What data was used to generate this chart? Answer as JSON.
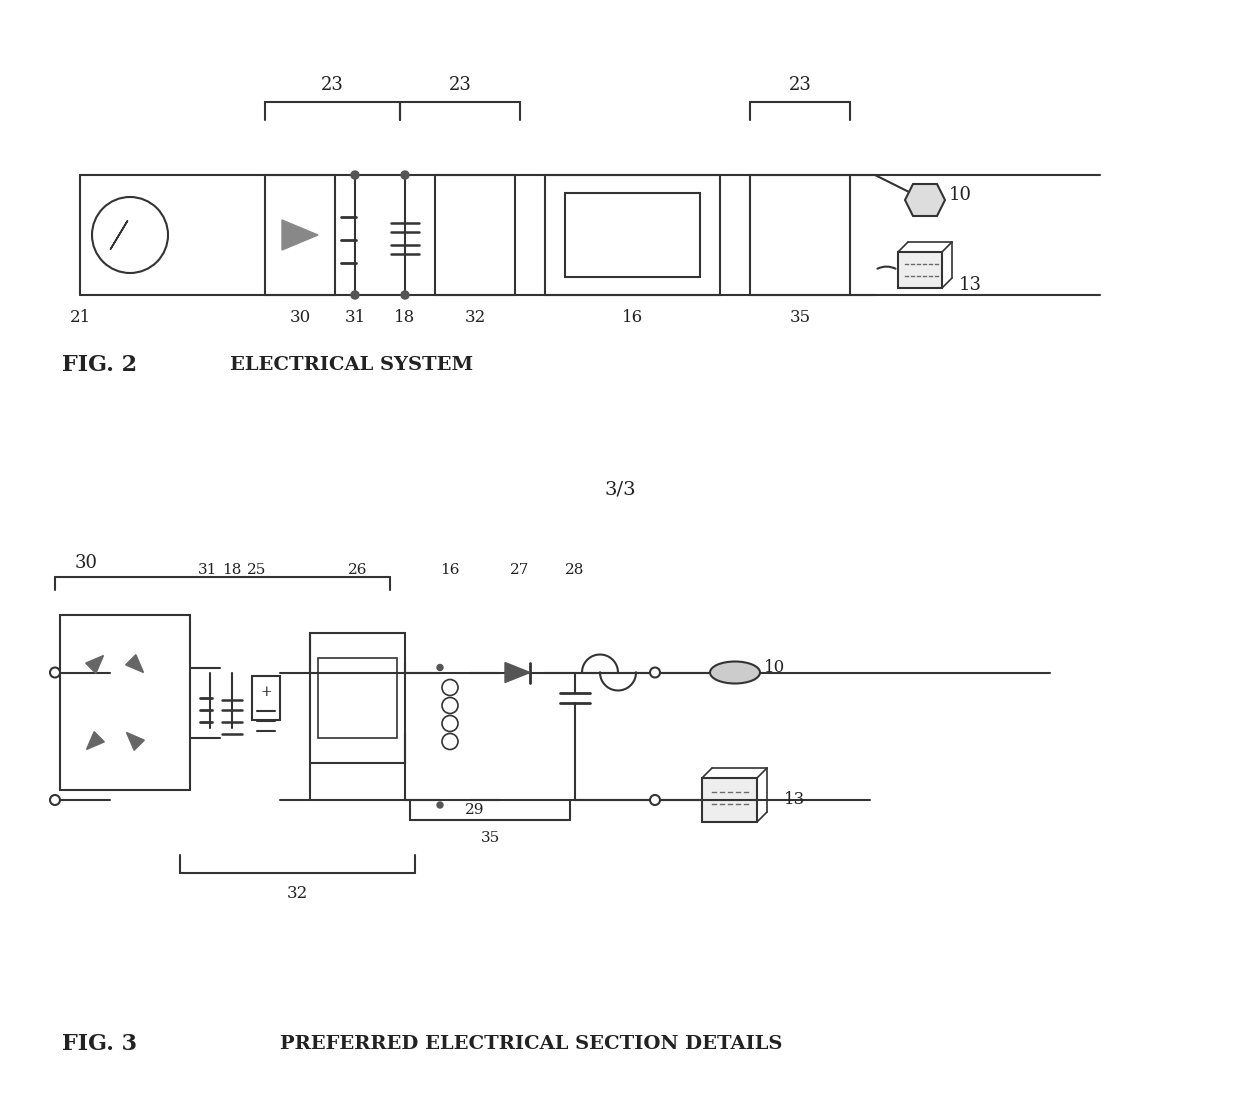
{
  "bg_color": "#ffffff",
  "line_color": "#333333",
  "fig2_title": "FIG. 2",
  "fig2_subtitle": "ELECTRICAL SYSTEM",
  "fig3_title": "FIG. 3",
  "fig3_subtitle": "PREFERRED ELECTRICAL SECTION DETAILS",
  "page_label": "3/3",
  "label_color": "#444444"
}
